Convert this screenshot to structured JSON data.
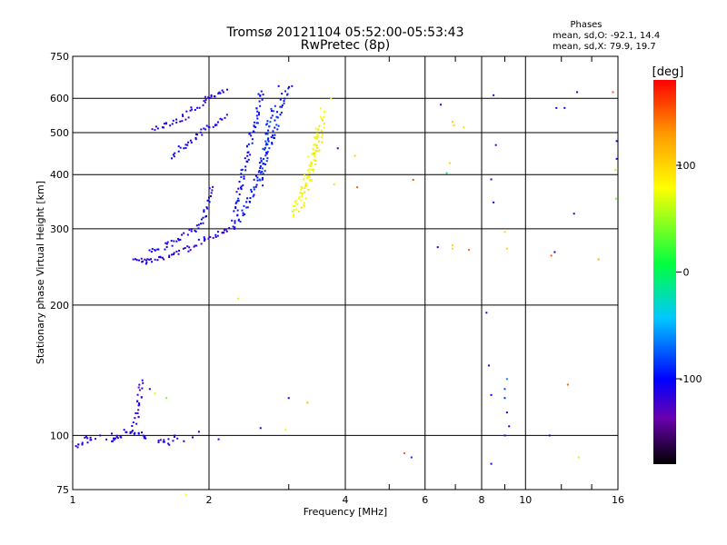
{
  "header": {
    "title_line1": "Tromsø 20121104 05:52:00-05:53:43",
    "title_line2": "RwPretec (8p)"
  },
  "stats": {
    "heading": "Phases",
    "line1": "mean, sd,O:  -92.1, 14.4",
    "line2": "mean, sd,X:  79.9, 19.7"
  },
  "chart_data": {
    "type": "scatter",
    "xlabel": "Frequency [MHz]",
    "ylabel": "Stationary phase Virtual Height [km]",
    "x_scale": "log2",
    "y_scale": "log",
    "xlim": [
      1,
      16
    ],
    "ylim": [
      75,
      750
    ],
    "x_ticks": [
      {
        "value": 1,
        "label": "1"
      },
      {
        "value": 2,
        "label": "2"
      },
      {
        "value": 4,
        "label": "4"
      },
      {
        "value": 6,
        "label": "6"
      },
      {
        "value": 8,
        "label": "8"
      },
      {
        "value": 10,
        "label": "10"
      },
      {
        "value": 16,
        "label": "16"
      }
    ],
    "x_minor": [
      3,
      5,
      7,
      9,
      12,
      14
    ],
    "y_ticks": [
      {
        "value": 75,
        "label": "75"
      },
      {
        "value": 100,
        "label": "100"
      },
      {
        "value": 200,
        "label": "200"
      },
      {
        "value": 300,
        "label": "300"
      },
      {
        "value": 400,
        "label": "400"
      },
      {
        "value": 500,
        "label": "500"
      },
      {
        "value": 600,
        "label": "600"
      },
      {
        "value": 750,
        "label": "750"
      }
    ],
    "colorbar": {
      "label": "[deg]",
      "range": [
        -180,
        180
      ],
      "ticks": [
        {
          "value": 100,
          "label": "100"
        },
        {
          "value": 0,
          "label": "0"
        },
        {
          "value": -100,
          "label": "-100"
        }
      ]
    },
    "grid": true,
    "traces": [
      {
        "phase": -115,
        "points": [
          [
            1.38,
            258
          ],
          [
            1.4,
            255
          ],
          [
            1.42,
            252
          ],
          [
            1.45,
            252
          ],
          [
            1.48,
            253
          ],
          [
            1.52,
            254
          ],
          [
            1.56,
            256
          ],
          [
            1.6,
            258
          ],
          [
            1.65,
            261
          ],
          [
            1.7,
            264
          ],
          [
            1.75,
            267
          ],
          [
            1.8,
            270
          ],
          [
            1.85,
            274
          ],
          [
            1.9,
            279
          ],
          [
            1.95,
            283
          ],
          [
            2.0,
            287
          ],
          [
            2.05,
            290
          ],
          [
            2.1,
            293
          ],
          [
            2.15,
            297
          ],
          [
            2.2,
            300
          ],
          [
            2.25,
            305
          ]
        ]
      },
      {
        "phase": -110,
        "points": [
          [
            1.48,
            265
          ],
          [
            1.52,
            268
          ],
          [
            1.58,
            272
          ],
          [
            1.64,
            276
          ],
          [
            1.7,
            282
          ],
          [
            1.76,
            288
          ],
          [
            1.82,
            294
          ],
          [
            1.88,
            302
          ],
          [
            1.92,
            312
          ],
          [
            1.96,
            325
          ],
          [
            1.98,
            340
          ],
          [
            2.0,
            355
          ],
          [
            2.02,
            375
          ]
        ]
      },
      {
        "phase": -112,
        "points": [
          [
            1.5,
            510
          ],
          [
            1.56,
            515
          ],
          [
            1.62,
            522
          ],
          [
            1.68,
            530
          ],
          [
            1.74,
            540
          ],
          [
            1.8,
            552
          ],
          [
            1.85,
            565
          ],
          [
            1.9,
            578
          ],
          [
            1.95,
            590
          ],
          [
            2.0,
            600
          ],
          [
            2.05,
            610
          ],
          [
            2.1,
            618
          ],
          [
            2.15,
            625
          ],
          [
            2.2,
            630
          ]
        ]
      },
      {
        "phase": -108,
        "points": [
          [
            1.64,
            440
          ],
          [
            1.7,
            452
          ],
          [
            1.76,
            465
          ],
          [
            1.82,
            478
          ],
          [
            1.88,
            490
          ],
          [
            1.94,
            502
          ],
          [
            2.0,
            514
          ],
          [
            2.06,
            525
          ],
          [
            2.12,
            537
          ],
          [
            2.18,
            550
          ]
        ]
      },
      {
        "phase": -100,
        "points": [
          [
            2.26,
            300
          ],
          [
            2.28,
            320
          ],
          [
            2.31,
            345
          ],
          [
            2.34,
            370
          ],
          [
            2.37,
            395
          ],
          [
            2.4,
            420
          ],
          [
            2.43,
            445
          ],
          [
            2.46,
            470
          ],
          [
            2.49,
            495
          ],
          [
            2.52,
            520
          ],
          [
            2.55,
            545
          ],
          [
            2.58,
            570
          ],
          [
            2.6,
            600
          ],
          [
            2.62,
            630
          ]
        ]
      },
      {
        "phase": -95,
        "points": [
          [
            2.35,
            310
          ],
          [
            2.4,
            328
          ],
          [
            2.45,
            348
          ],
          [
            2.5,
            368
          ],
          [
            2.55,
            390
          ],
          [
            2.6,
            412
          ],
          [
            2.65,
            435
          ],
          [
            2.7,
            458
          ],
          [
            2.75,
            480
          ],
          [
            2.8,
            505
          ],
          [
            2.83,
            530
          ],
          [
            2.86,
            560
          ],
          [
            2.9,
            590
          ],
          [
            2.95,
            620
          ],
          [
            3.0,
            645
          ]
        ]
      },
      {
        "phase": -90,
        "points": [
          [
            2.6,
            380
          ],
          [
            2.62,
            405
          ],
          [
            2.64,
            430
          ],
          [
            2.66,
            455
          ],
          [
            2.68,
            480
          ],
          [
            2.7,
            505
          ],
          [
            2.72,
            530
          ],
          [
            2.75,
            555
          ],
          [
            2.78,
            580
          ]
        ]
      },
      {
        "phase": 75,
        "points": [
          [
            3.05,
            320
          ],
          [
            3.08,
            330
          ],
          [
            3.12,
            342
          ],
          [
            3.16,
            355
          ],
          [
            3.2,
            368
          ],
          [
            3.24,
            382
          ],
          [
            3.28,
            398
          ],
          [
            3.32,
            415
          ],
          [
            3.36,
            435
          ],
          [
            3.4,
            455
          ],
          [
            3.42,
            478
          ],
          [
            3.44,
            500
          ],
          [
            3.46,
            520
          ]
        ]
      },
      {
        "phase": 88,
        "points": [
          [
            3.18,
            330
          ],
          [
            3.22,
            345
          ],
          [
            3.26,
            360
          ],
          [
            3.3,
            375
          ],
          [
            3.34,
            392
          ],
          [
            3.38,
            410
          ],
          [
            3.42,
            430
          ],
          [
            3.46,
            450
          ],
          [
            3.5,
            470
          ],
          [
            3.52,
            495
          ],
          [
            3.55,
            530
          ],
          [
            3.58,
            570
          ]
        ]
      },
      {
        "phase": -115,
        "points": [
          [
            1.02,
            95
          ],
          [
            1.04,
            94
          ],
          [
            1.06,
            96
          ],
          [
            1.08,
            99
          ],
          [
            1.1,
            97
          ],
          [
            1.12,
            100
          ]
        ]
      },
      {
        "phase": -110,
        "points": [
          [
            1.2,
            97
          ],
          [
            1.22,
            99
          ],
          [
            1.25,
            98
          ],
          [
            1.28,
            100
          ],
          [
            1.3,
            102
          ],
          [
            1.33,
            101
          ],
          [
            1.36,
            100
          ],
          [
            1.4,
            101
          ],
          [
            1.43,
            99
          ],
          [
            1.46,
            100
          ]
        ]
      },
      {
        "phase": -115,
        "points": [
          [
            1.55,
            98
          ],
          [
            1.58,
            97
          ],
          [
            1.62,
            96
          ],
          [
            1.66,
            98
          ],
          [
            1.7,
            99
          ]
        ]
      },
      {
        "phase": -120,
        "points": [
          [
            1.36,
            104
          ],
          [
            1.38,
            110
          ],
          [
            1.4,
            120
          ],
          [
            1.42,
            135
          ]
        ]
      }
    ],
    "points": [
      [
        1.15,
        100,
        -110
      ],
      [
        1.22,
        101,
        -105
      ],
      [
        1.48,
        128,
        -108
      ],
      [
        1.52,
        125,
        85
      ],
      [
        1.61,
        122,
        40
      ],
      [
        1.68,
        100,
        -110
      ],
      [
        1.76,
        97,
        -105
      ],
      [
        1.84,
        99,
        -100
      ],
      [
        1.9,
        102,
        -110
      ],
      [
        2.1,
        98,
        -108
      ],
      [
        1.78,
        73,
        80
      ],
      [
        2.6,
        104,
        -112
      ],
      [
        2.95,
        103,
        75
      ],
      [
        3.0,
        122,
        -110
      ],
      [
        3.3,
        119,
        110
      ],
      [
        2.32,
        207,
        90
      ],
      [
        2.85,
        640,
        -108
      ],
      [
        3.05,
        640,
        -112
      ],
      [
        3.85,
        460,
        -112
      ],
      [
        4.2,
        442,
        100
      ],
      [
        4.25,
        374,
        150
      ],
      [
        3.72,
        600,
        85
      ],
      [
        3.78,
        380,
        95
      ],
      [
        5.4,
        91,
        150
      ],
      [
        5.6,
        89,
        -90
      ],
      [
        5.65,
        389,
        150
      ],
      [
        6.5,
        580,
        -112
      ],
      [
        6.9,
        530,
        100
      ],
      [
        6.95,
        520,
        100
      ],
      [
        6.8,
        425,
        100
      ],
      [
        6.7,
        403,
        -20
      ],
      [
        6.9,
        275,
        100
      ],
      [
        7.3,
        515,
        90
      ],
      [
        6.4,
        272,
        -105
      ],
      [
        6.9,
        270,
        95
      ],
      [
        7.5,
        268,
        150
      ],
      [
        8.2,
        192,
        -115
      ],
      [
        8.3,
        145,
        -110
      ],
      [
        8.4,
        124,
        -100
      ],
      [
        8.4,
        86,
        -112
      ],
      [
        8.5,
        610,
        -112
      ],
      [
        8.6,
        468,
        -95
      ],
      [
        8.4,
        390,
        -112
      ],
      [
        8.5,
        345,
        -110
      ],
      [
        9.0,
        122,
        -90
      ],
      [
        9.0,
        128,
        -80
      ],
      [
        9.1,
        113,
        -110
      ],
      [
        9.2,
        105,
        -110
      ],
      [
        9.1,
        135,
        -60
      ],
      [
        9.0,
        100,
        -95
      ],
      [
        9.1,
        270,
        100
      ],
      [
        9.0,
        295,
        100
      ],
      [
        11.3,
        100,
        -110
      ],
      [
        11.4,
        260,
        150
      ],
      [
        11.6,
        265,
        -112
      ],
      [
        11.7,
        570,
        -110
      ],
      [
        12.2,
        570,
        -100
      ],
      [
        12.4,
        131,
        150
      ],
      [
        12.8,
        325,
        -112
      ],
      [
        13.0,
        620,
        -112
      ],
      [
        13.1,
        89,
        60
      ],
      [
        14.5,
        255,
        120
      ],
      [
        15.6,
        620,
        150
      ],
      [
        15.8,
        410,
        60
      ],
      [
        15.9,
        435,
        -112
      ],
      [
        15.85,
        352,
        40
      ],
      [
        15.9,
        478,
        -112
      ]
    ]
  }
}
